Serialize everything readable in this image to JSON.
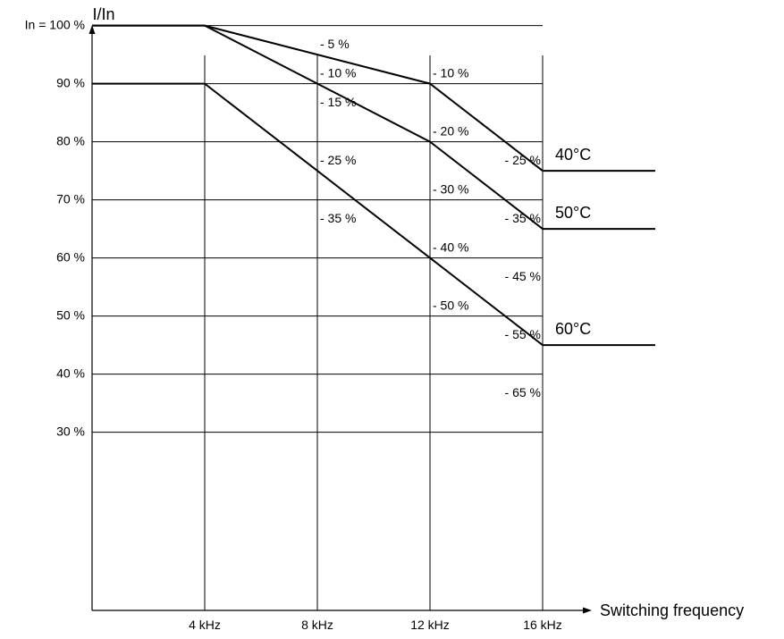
{
  "chart_data": {
    "type": "line",
    "ylabel": "I/In",
    "xlabel": "Switching frequency",
    "x_ticks": [
      {
        "value": 4,
        "label": "4 kHz"
      },
      {
        "value": 8,
        "label": "8 kHz"
      },
      {
        "value": 12,
        "label": "12 kHz"
      },
      {
        "value": 16,
        "label": "16 kHz"
      }
    ],
    "y_ticks": [
      {
        "value": 100,
        "label": "In = 100 %"
      },
      {
        "value": 90,
        "label": "90 %"
      },
      {
        "value": 80,
        "label": "80 %"
      },
      {
        "value": 70,
        "label": "70 %"
      },
      {
        "value": 60,
        "label": "60 %"
      },
      {
        "value": 50,
        "label": "50 %"
      },
      {
        "value": 40,
        "label": "40 %"
      },
      {
        "value": 30,
        "label": "30 %"
      }
    ],
    "xlim": [
      0,
      20
    ],
    "ylim": [
      0,
      100
    ],
    "grid": true,
    "series": [
      {
        "name": "40°C",
        "x": [
          0,
          4,
          12,
          16,
          20
        ],
        "y": [
          100,
          100,
          90,
          75,
          75
        ]
      },
      {
        "name": "50°C",
        "x": [
          0,
          4,
          8,
          12,
          16,
          20
        ],
        "y": [
          100,
          100,
          90,
          80,
          65,
          65
        ]
      },
      {
        "name": "60°C",
        "x": [
          0,
          4,
          8,
          12,
          16,
          20
        ],
        "y": [
          90,
          90,
          75,
          60,
          45,
          45
        ]
      }
    ],
    "annotations": [
      {
        "text": "- 5 %",
        "x": 8,
        "y": 95
      },
      {
        "text": "- 10 %",
        "x": 8,
        "y": 90
      },
      {
        "text": "- 15 %",
        "x": 8,
        "y": 85
      },
      {
        "text": "- 25 %",
        "x": 8,
        "y": 75
      },
      {
        "text": "- 35 %",
        "x": 8,
        "y": 65
      },
      {
        "text": "- 10 %",
        "x": 12,
        "y": 90
      },
      {
        "text": "- 20 %",
        "x": 12,
        "y": 80
      },
      {
        "text": "- 30 %",
        "x": 12,
        "y": 70
      },
      {
        "text": "- 40 %",
        "x": 12,
        "y": 60
      },
      {
        "text": "- 50 %",
        "x": 12,
        "y": 50
      },
      {
        "text": "- 25 %",
        "x": 16,
        "y": 75
      },
      {
        "text": "- 35 %",
        "x": 16,
        "y": 65
      },
      {
        "text": "- 45 %",
        "x": 16,
        "y": 55
      },
      {
        "text": "- 55 %",
        "x": 16,
        "y": 45
      },
      {
        "text": "- 65 %",
        "x": 16,
        "y": 35
      }
    ]
  }
}
